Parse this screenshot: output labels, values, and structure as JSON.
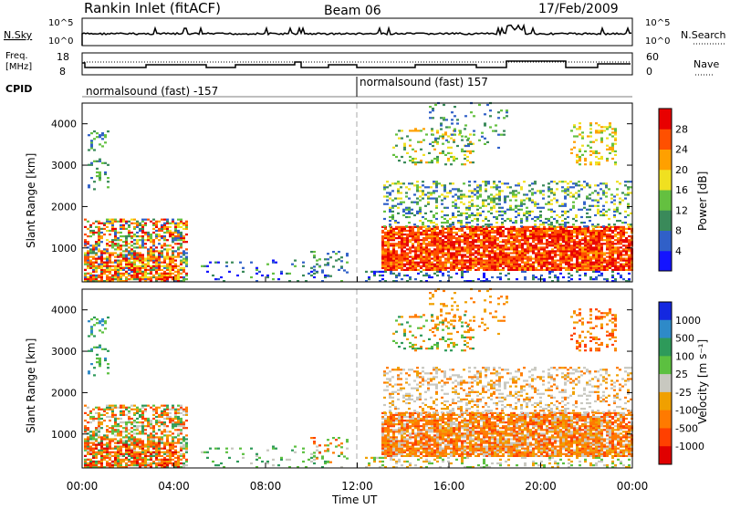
{
  "header": {
    "station": "Rankin Inlet (fitACF)",
    "beam": "Beam 06",
    "date": "17/Feb/2009"
  },
  "top_panels": {
    "nsky_label": "N.Sky",
    "nsky_ticks": [
      "10^5",
      "10^0"
    ],
    "nsearch_label": "N.Search",
    "nsearch_ticks": [
      "10^5",
      "10^0"
    ],
    "freq_label_1": "Freq.",
    "freq_label_2": "[MHz]",
    "freq_ticks": [
      "18",
      "8"
    ],
    "nave_label": "Nave",
    "nave_ticks": [
      "60",
      "0"
    ],
    "cpid_label": "CPID",
    "cpid_1": "normalsound (fast) -157",
    "cpid_2": "normalsound (fast) 157"
  },
  "chart_data": [
    {
      "type": "heatmap",
      "name": "power",
      "ylabel": "Slant Range [km]",
      "yticks": [
        1000,
        2000,
        3000,
        4000
      ],
      "ylim": [
        180,
        4500
      ],
      "xlim": [
        0,
        24
      ],
      "colorbar_label": "Power [dB]",
      "colorbar_ticks": [
        "4",
        "8",
        "12",
        "16",
        "20",
        "24",
        "28"
      ],
      "colorbar_colors": [
        "#1414ff",
        "#3060c8",
        "#3a8a5a",
        "#64c040",
        "#f0e020",
        "#ffa000",
        "#ff5000",
        "#e80000"
      ]
    },
    {
      "type": "heatmap",
      "name": "velocity",
      "ylabel": "Slant Range [km]",
      "yticks": [
        1000,
        2000,
        3000,
        4000
      ],
      "ylim": [
        180,
        4500
      ],
      "xlim": [
        0,
        24
      ],
      "colorbar_label": "Velocity [m s⁻¹]",
      "colorbar_ticks": [
        "1000",
        "500",
        "100",
        "25",
        "-25",
        "-100",
        "-500",
        "-1000"
      ],
      "colorbar_colors": [
        "#1428e0",
        "#2e8ac8",
        "#2e9a5a",
        "#5cc040",
        "#c8c8c0",
        "#f0a000",
        "#ff7a00",
        "#ff4000",
        "#e00000"
      ]
    }
  ],
  "x_axis": {
    "ticks": [
      "00:00",
      "04:00",
      "08:00",
      "12:00",
      "16:00",
      "20:00",
      "00:00"
    ],
    "label": "Time UT"
  }
}
